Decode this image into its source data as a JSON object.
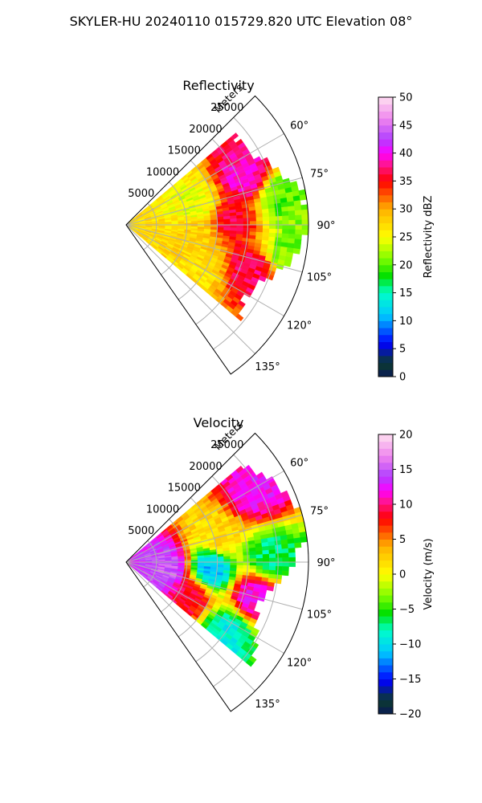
{
  "suptitle": "SKYLER-HU  20240110  015729.820 UTC Elevation 08°",
  "chart_data": [
    {
      "type": "heatmap",
      "projection": "polar-sector",
      "title": "Reflectivity",
      "radial_label": "Meters",
      "radial_ticks": [
        5000,
        10000,
        15000,
        20000,
        25000
      ],
      "radial_tick_labels": [
        "5000",
        "10000",
        "15000",
        "20000",
        "25000"
      ],
      "rlim": [
        0,
        30000
      ],
      "azimuth_range_deg": [
        45,
        145
      ],
      "azimuth_ticks": [
        "60°",
        "75°",
        "90°",
        "105°",
        "120°",
        "135°"
      ],
      "grid": true,
      "colorbar": {
        "label": "Reflectivity dBZ",
        "range": [
          0,
          50
        ],
        "ticks": [
          "0",
          "5",
          "10",
          "15",
          "20",
          "25",
          "30",
          "35",
          "40",
          "45",
          "50"
        ],
        "stops": [
          [
            "#0a1a55",
            0
          ],
          [
            "#0b3b2e",
            0.05
          ],
          [
            "#0000ff",
            0.12
          ],
          [
            "#00c8ff",
            0.22
          ],
          [
            "#00ffc8",
            0.3
          ],
          [
            "#00e000",
            0.36
          ],
          [
            "#7cfc00",
            0.42
          ],
          [
            "#ffff00",
            0.5
          ],
          [
            "#ffb000",
            0.6
          ],
          [
            "#ff0000",
            0.7
          ],
          [
            "#ff1493",
            0.76
          ],
          [
            "#ff00ff",
            0.8
          ],
          [
            "#b040ff",
            0.85
          ],
          [
            "#ee82ee",
            0.92
          ],
          [
            "#ffe0f0",
            1
          ]
        ]
      },
      "features": [
        {
          "az": 88,
          "r": 17000,
          "value": 36
        },
        {
          "az": 68,
          "r": 21000,
          "value": 39
        },
        {
          "az": 110,
          "r": 22000,
          "value": 37
        },
        {
          "az": 95,
          "r": 12000,
          "value": 28
        },
        {
          "az": 75,
          "r": 12000,
          "value": 24
        },
        {
          "az": 120,
          "r": 14000,
          "value": 27
        },
        {
          "az": 80,
          "r": 26000,
          "value": 20
        },
        {
          "az": 100,
          "r": 27000,
          "value": 21
        }
      ]
    },
    {
      "type": "heatmap",
      "projection": "polar-sector",
      "title": "Velocity",
      "radial_label": "Meters",
      "radial_ticks": [
        5000,
        10000,
        15000,
        20000,
        25000
      ],
      "radial_tick_labels": [
        "5000",
        "10000",
        "15000",
        "20000",
        "25000"
      ],
      "rlim": [
        0,
        30000
      ],
      "azimuth_range_deg": [
        45,
        145
      ],
      "azimuth_ticks": [
        "60°",
        "75°",
        "90°",
        "105°",
        "120°",
        "135°"
      ],
      "grid": true,
      "colorbar": {
        "label": "Velocity (m/s)",
        "range": [
          -20,
          20
        ],
        "ticks": [
          "−20",
          "−15",
          "−10",
          "−5",
          "0",
          "5",
          "10",
          "15",
          "20"
        ],
        "stops": [
          [
            "#0a1a55",
            0
          ],
          [
            "#0b3b2e",
            0.05
          ],
          [
            "#0000ff",
            0.12
          ],
          [
            "#00c8ff",
            0.22
          ],
          [
            "#00ffc8",
            0.3
          ],
          [
            "#00e000",
            0.36
          ],
          [
            "#7cfc00",
            0.42
          ],
          [
            "#ffff00",
            0.5
          ],
          [
            "#ffb000",
            0.6
          ],
          [
            "#ff0000",
            0.7
          ],
          [
            "#ff1493",
            0.76
          ],
          [
            "#ff00ff",
            0.8
          ],
          [
            "#b040ff",
            0.85
          ],
          [
            "#ee82ee",
            0.92
          ],
          [
            "#ffe0f0",
            1
          ]
        ]
      },
      "features": [
        {
          "az": 62,
          "r": 24000,
          "value": 12
        },
        {
          "az": 75,
          "r": 16000,
          "value": 2
        },
        {
          "az": 95,
          "r": 14000,
          "value": -11
        },
        {
          "az": 100,
          "r": 7000,
          "value": 15
        },
        {
          "az": 105,
          "r": 22000,
          "value": 12
        },
        {
          "az": 118,
          "r": 12000,
          "value": 9
        },
        {
          "az": 125,
          "r": 20000,
          "value": -9
        },
        {
          "az": 88,
          "r": 24000,
          "value": -7
        }
      ]
    }
  ]
}
